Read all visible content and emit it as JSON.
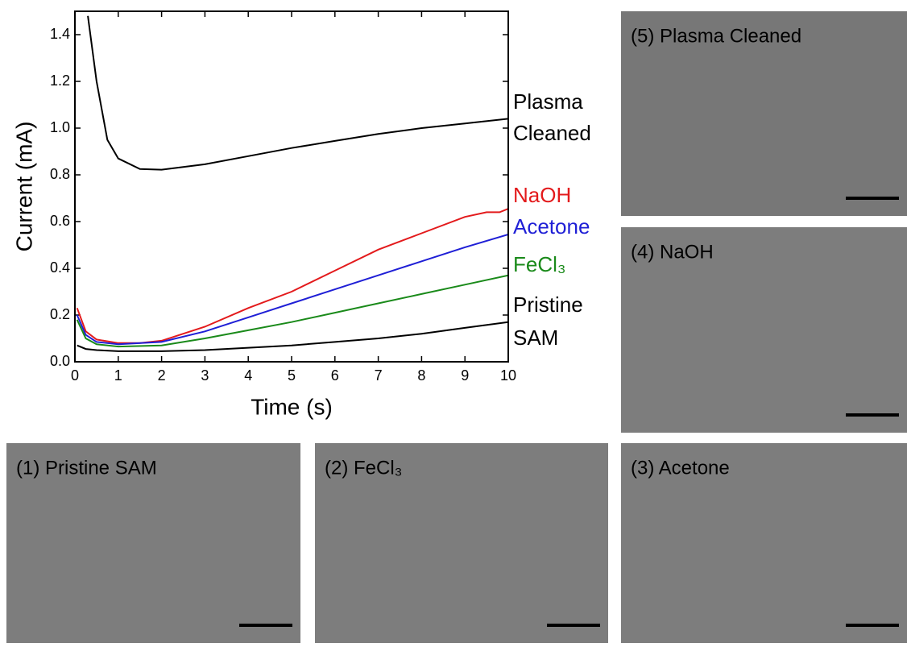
{
  "chart_data": {
    "type": "line",
    "xlabel": "Time (s)",
    "ylabel": "Current (mA)",
    "xlim": [
      0,
      10
    ],
    "ylim": [
      0,
      1.5
    ],
    "xticks": [
      0,
      1,
      2,
      3,
      4,
      5,
      6,
      7,
      8,
      9,
      10
    ],
    "yticks": [
      {
        "value": 0,
        "label": "0.0"
      },
      {
        "value": 0.2,
        "label": "0.2"
      },
      {
        "value": 0.4,
        "label": "0.4"
      },
      {
        "value": 0.6,
        "label": "0.6"
      },
      {
        "value": 0.8,
        "label": "0.8"
      },
      {
        "value": 1.0,
        "label": "1.0"
      },
      {
        "value": 1.2,
        "label": "1.2"
      },
      {
        "value": 1.4,
        "label": "1.4"
      }
    ],
    "series": [
      {
        "name": "Plasma Cleaned",
        "color": "#000000",
        "x": [
          0.3,
          0.5,
          0.75,
          1,
          1.5,
          2,
          3,
          4,
          5,
          6,
          7,
          8,
          9,
          10
        ],
        "values": [
          1.48,
          1.2,
          0.95,
          0.87,
          0.825,
          0.822,
          0.845,
          0.88,
          0.915,
          0.945,
          0.975,
          1.0,
          1.02,
          1.04
        ]
      },
      {
        "name": "NaOH",
        "color": "#e31a1c",
        "x": [
          0.05,
          0.25,
          0.5,
          1,
          1.5,
          2,
          3,
          4,
          5,
          6,
          7,
          8,
          9,
          9.5,
          9.8,
          10
        ],
        "values": [
          0.23,
          0.13,
          0.095,
          0.08,
          0.08,
          0.09,
          0.15,
          0.23,
          0.3,
          0.39,
          0.48,
          0.55,
          0.62,
          0.64,
          0.64,
          0.655
        ]
      },
      {
        "name": "Acetone",
        "color": "#1f1fd6",
        "x": [
          0.05,
          0.25,
          0.5,
          1,
          2,
          3,
          4,
          5,
          6,
          7,
          8,
          9,
          10
        ],
        "values": [
          0.2,
          0.115,
          0.085,
          0.075,
          0.085,
          0.13,
          0.19,
          0.25,
          0.31,
          0.37,
          0.43,
          0.49,
          0.545
        ]
      },
      {
        "name": "FeCl₃",
        "color": "#1a8a1a",
        "x": [
          0.05,
          0.25,
          0.5,
          1,
          2,
          3,
          4,
          5,
          6,
          7,
          8,
          9,
          10
        ],
        "values": [
          0.18,
          0.1,
          0.075,
          0.065,
          0.07,
          0.1,
          0.135,
          0.17,
          0.21,
          0.25,
          0.29,
          0.33,
          0.37
        ]
      },
      {
        "name": "Pristine SAM",
        "color": "#000000",
        "x": [
          0.05,
          0.25,
          0.5,
          1,
          2,
          3,
          4,
          5,
          6,
          7,
          8,
          9,
          10
        ],
        "values": [
          0.07,
          0.055,
          0.05,
          0.045,
          0.045,
          0.05,
          0.06,
          0.07,
          0.085,
          0.1,
          0.12,
          0.145,
          0.17
        ]
      }
    ]
  },
  "panels": [
    {
      "label": "(5) Plasma Cleaned"
    },
    {
      "label": "(4) NaOH"
    },
    {
      "label": "(1) Pristine SAM"
    },
    {
      "label": "(2) FeCl₃"
    },
    {
      "label": "(3) Acetone"
    }
  ]
}
